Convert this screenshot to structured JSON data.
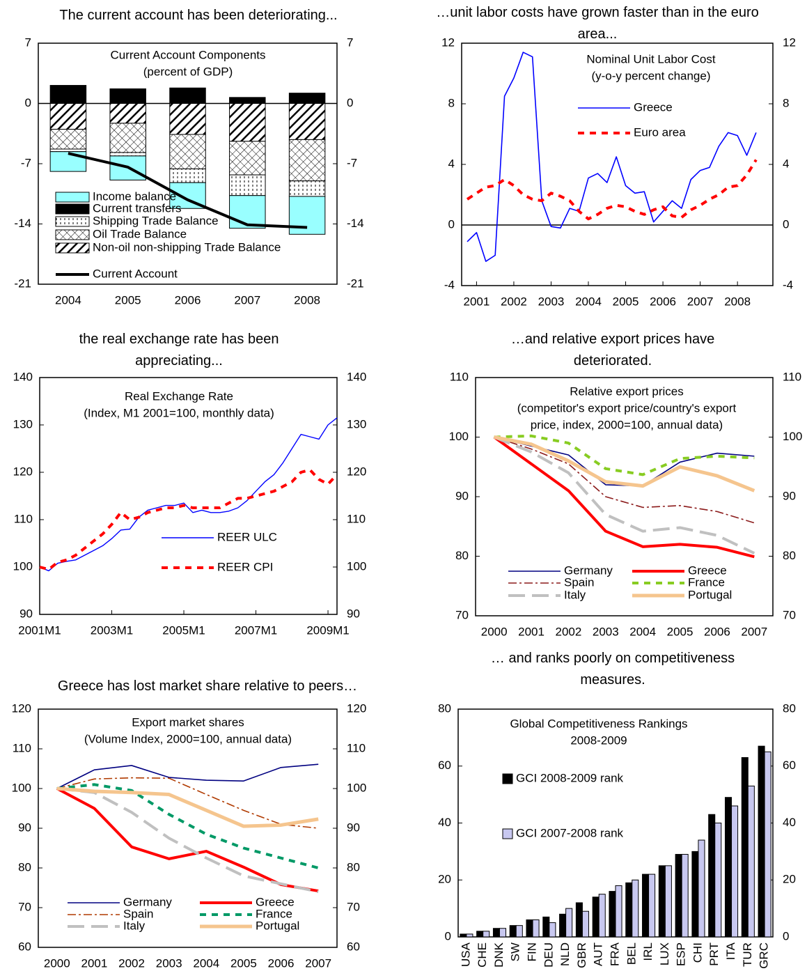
{
  "chart_data": [
    {
      "type": "bar",
      "stacked": true,
      "title": "The current account has been deteriorating...",
      "subtitle": [
        "Current Account Components",
        "(percent of GDP)"
      ],
      "categories": [
        "2004",
        "2005",
        "2006",
        "2007",
        "2008"
      ],
      "ylim": [
        -21,
        7
      ],
      "yticks": [
        -21,
        -14,
        -7,
        0,
        7
      ],
      "zero_line": true,
      "series": [
        {
          "name": "Income balance",
          "color": "#99ffff",
          "values": [
            -2.3,
            -2.8,
            -3.0,
            -3.8,
            -4.4
          ]
        },
        {
          "name": "Current transfers",
          "color": "#000000",
          "values": [
            2.1,
            1.7,
            1.8,
            0.7,
            1.2
          ]
        },
        {
          "name": "Shipping Trade Balance",
          "pattern": "dots",
          "values": [
            -0.3,
            -0.4,
            -1.6,
            -2.4,
            -1.8
          ]
        },
        {
          "name": "Oil Trade Balance",
          "pattern": "crosshatch",
          "values": [
            -2.3,
            -3.4,
            -4.0,
            -3.9,
            -4.8
          ]
        },
        {
          "name": "Non-oil non-shipping Trade Balance",
          "pattern": "hatch",
          "values": [
            -3.0,
            -2.3,
            -3.6,
            -4.4,
            -4.2
          ]
        },
        {
          "name": "Current Account",
          "type": "line",
          "color": "#000000",
          "width": 4,
          "dash": "solid",
          "values": [
            -5.8,
            -7.4,
            -11.2,
            -14.1,
            -14.4
          ]
        }
      ]
    },
    {
      "type": "line",
      "title": "…unit labor costs have grown faster than in the euro area...",
      "subtitle": [
        "Nominal Unit Labor Cost",
        "(y-o-y percent change)"
      ],
      "x": [
        2000.75,
        2001,
        2001.25,
        2001.5,
        2001.75,
        2002,
        2002.25,
        2002.5,
        2002.75,
        2003,
        2003.25,
        2003.5,
        2003.75,
        2004,
        2004.25,
        2004.5,
        2004.75,
        2005,
        2005.25,
        2005.5,
        2005.75,
        2006,
        2006.25,
        2006.5,
        2006.75,
        2007,
        2007.25,
        2007.5,
        2007.75,
        2008,
        2008.25,
        2008.5
      ],
      "xlim": [
        2000.6,
        2008.95
      ],
      "xticks": [
        2001,
        2002,
        2003,
        2004,
        2005,
        2006,
        2007,
        2008
      ],
      "ylim": [
        -4,
        12
      ],
      "yticks": [
        -4,
        0,
        4,
        8,
        12
      ],
      "zero_line": true,
      "series": [
        {
          "name": "Greece",
          "color": "#0000ff",
          "width": 1.6,
          "dash": "solid",
          "values": [
            -1.1,
            -0.5,
            -2.4,
            -2.0,
            8.5,
            9.7,
            11.4,
            11.1,
            1.6,
            -0.1,
            -0.2,
            1.1,
            0.9,
            3.1,
            3.4,
            2.8,
            4.5,
            2.6,
            2.1,
            2.2,
            0.2,
            0.9,
            1.6,
            1.1,
            3.0,
            3.6,
            3.8,
            5.2,
            6.1,
            5.9,
            4.6,
            6.1
          ]
        },
        {
          "name": "Euro area",
          "color": "#ff0000",
          "width": 4,
          "dash": "dashed",
          "values": [
            1.7,
            2.1,
            2.5,
            2.6,
            3.0,
            2.6,
            2.0,
            1.7,
            1.6,
            2.1,
            1.9,
            1.6,
            0.9,
            0.4,
            0.7,
            1.1,
            1.3,
            1.2,
            0.9,
            0.7,
            1.0,
            1.2,
            0.6,
            0.5,
            1.0,
            1.3,
            1.7,
            2.0,
            2.5,
            2.6,
            3.3,
            4.3
          ]
        }
      ]
    },
    {
      "type": "line",
      "title": "the real exchange rate has been appreciating...",
      "subtitle": [
        "Real Exchange Rate",
        "(Index, M1 2001=100, monthly data)"
      ],
      "x": [
        2001,
        2001.25,
        2001.5,
        2001.75,
        2002,
        2002.25,
        2002.5,
        2002.75,
        2003,
        2003.25,
        2003.5,
        2003.75,
        2004,
        2004.25,
        2004.5,
        2004.75,
        2005,
        2005.25,
        2005.5,
        2005.75,
        2006,
        2006.25,
        2006.5,
        2006.75,
        2007,
        2007.25,
        2007.5,
        2007.75,
        2008,
        2008.25,
        2008.5,
        2008.75,
        2009,
        2009.25
      ],
      "xlim": [
        2001,
        2009.25
      ],
      "xticks": [
        {
          "value": 2001,
          "label": "2001M1"
        },
        {
          "value": 2003,
          "label": "2003M1"
        },
        {
          "value": 2005,
          "label": "2005M1"
        },
        {
          "value": 2007,
          "label": "2007M1"
        },
        {
          "value": 2009,
          "label": "2009M1"
        }
      ],
      "ylim": [
        90,
        140
      ],
      "yticks": [
        90,
        100,
        110,
        120,
        130,
        140
      ],
      "series": [
        {
          "name": "REER ULC",
          "color": "#0000ff",
          "width": 1.4,
          "dash": "solid",
          "values": [
            100,
            99.2,
            100.8,
            101.2,
            101.5,
            102.5,
            103.5,
            104.5,
            106,
            107.8,
            108,
            110.5,
            112,
            112.5,
            113,
            113,
            113.5,
            111.5,
            112,
            111.5,
            111.5,
            111.8,
            112.5,
            114,
            116,
            118,
            119.5,
            122,
            125,
            128,
            127.5,
            127,
            130,
            131.5
          ]
        },
        {
          "name": "REER CPI",
          "color": "#ff0000",
          "width": 4,
          "dash": "dashed",
          "values": [
            100,
            99.5,
            101,
            101.5,
            102.5,
            104,
            105.5,
            107,
            109,
            111.5,
            110,
            110.5,
            111.5,
            112,
            112.5,
            112.5,
            113,
            112.5,
            112.5,
            112.5,
            112.5,
            113.5,
            114.5,
            114.5,
            115,
            115.5,
            116,
            117,
            118,
            120,
            120.5,
            118.5,
            117.5,
            119.5
          ]
        }
      ]
    },
    {
      "type": "line",
      "title": "…and relative export prices have deteriorated.",
      "subtitle": [
        "Relative export prices",
        "(competitor's export price/country's export",
        "price,  index, 2000=100, annual data)"
      ],
      "categories": [
        "2000",
        "2001",
        "2002",
        "2003",
        "2004",
        "2005",
        "2006",
        "2007"
      ],
      "ylim": [
        70,
        110
      ],
      "yticks": [
        70,
        80,
        90,
        100,
        110
      ],
      "series": [
        {
          "name": "Germany",
          "color": "#000080",
          "width": 1.6,
          "dash": "solid",
          "values": [
            100,
            98.5,
            97,
            92,
            91.8,
            95.8,
            97.3,
            96.8
          ]
        },
        {
          "name": "Greece",
          "color": "#ff0000",
          "width": 4,
          "dash": "solid",
          "values": [
            100,
            95.5,
            91,
            84.2,
            81.6,
            82,
            81.5,
            79.9
          ]
        },
        {
          "name": "Spain",
          "color": "#8b1a1a",
          "width": 1.6,
          "dash": "dashdot",
          "values": [
            100,
            98,
            95.5,
            90,
            88.2,
            88.5,
            87.5,
            85.6
          ]
        },
        {
          "name": "France",
          "color": "#88cc22",
          "width": 4,
          "dash": "dashed",
          "values": [
            100,
            100.2,
            99,
            94.7,
            93.7,
            96.4,
            96.8,
            96.5
          ]
        },
        {
          "name": "Italy",
          "color": "#c0c0c0",
          "width": 4,
          "dash": "longdash",
          "values": [
            100,
            97.5,
            94,
            87,
            84.2,
            84.8,
            83.5,
            80.5
          ]
        },
        {
          "name": "Portugal",
          "color": "#f5c58e",
          "width": 5,
          "dash": "solid",
          "values": [
            100,
            98.8,
            96,
            92.5,
            91.8,
            95,
            93.5,
            91
          ]
        }
      ]
    },
    {
      "type": "line",
      "title": "Greece has lost market share relative to peers…",
      "subtitle": [
        "Export market shares",
        "(Volume Index, 2000=100, annual data)"
      ],
      "categories": [
        "2000",
        "2001",
        "2002",
        "2003",
        "2004",
        "2005",
        "2006",
        "2007"
      ],
      "ylim": [
        60,
        120
      ],
      "yticks": [
        60,
        70,
        80,
        90,
        100,
        110,
        120
      ],
      "series": [
        {
          "name": "Germany",
          "color": "#000080",
          "width": 1.6,
          "dash": "solid",
          "values": [
            100,
            104.7,
            105.8,
            102.8,
            102.1,
            101.9,
            105.3,
            106.1
          ]
        },
        {
          "name": "Greece",
          "color": "#ff0000",
          "width": 4,
          "dash": "solid",
          "values": [
            100,
            95,
            85.3,
            82.3,
            84.2,
            80.2,
            75.8,
            74.2
          ]
        },
        {
          "name": "Spain",
          "color": "#b03a00",
          "width": 1.6,
          "dash": "dashdot",
          "values": [
            100,
            102.4,
            102.7,
            102.6,
            98.5,
            94.5,
            91,
            90
          ]
        },
        {
          "name": "France",
          "color": "#009966",
          "width": 4,
          "dash": "dashed",
          "values": [
            100,
            101,
            99.5,
            93.5,
            88.5,
            85,
            82.5,
            80
          ]
        },
        {
          "name": "Italy",
          "color": "#c0c0c0",
          "width": 4,
          "dash": "longdash",
          "values": [
            100,
            99,
            94,
            87.5,
            82.5,
            78,
            76,
            74
          ]
        },
        {
          "name": "Portugal",
          "color": "#f5c58e",
          "width": 5,
          "dash": "solid",
          "values": [
            100,
            99.3,
            99,
            98.5,
            94.5,
            90.5,
            90.8,
            92.3
          ]
        }
      ]
    },
    {
      "type": "bar",
      "title": "… and ranks poorly on competitiveness measures.",
      "subtitle": [
        "Global Competitiveness Rankings",
        "2008-2009"
      ],
      "categories": [
        "USA",
        "CHE",
        "DNK",
        "SW",
        "FIN",
        "DEU",
        "NLD",
        "GBR",
        "AUT",
        "FRA",
        "BEL",
        "IRL",
        "LUX",
        "ESP",
        "CHI",
        "PRT",
        "ITA",
        "TUR",
        "GRC"
      ],
      "ylim": [
        0,
        80
      ],
      "yticks": [
        0,
        20,
        40,
        60,
        80
      ],
      "series": [
        {
          "name": "GCI 2008-2009 rank",
          "color": "#000000",
          "values": [
            1,
            2,
            3,
            4,
            6,
            7,
            8,
            12,
            14,
            16,
            19,
            22,
            25,
            29,
            30,
            43,
            49,
            63,
            67
          ]
        },
        {
          "name": "GCI 2007-2008 rank",
          "color": "#c8c8f0",
          "values": [
            1,
            2,
            3,
            4,
            6,
            5,
            10,
            9,
            15,
            18,
            20,
            22,
            25,
            29,
            34,
            40,
            46,
            53,
            65
          ]
        }
      ]
    }
  ]
}
